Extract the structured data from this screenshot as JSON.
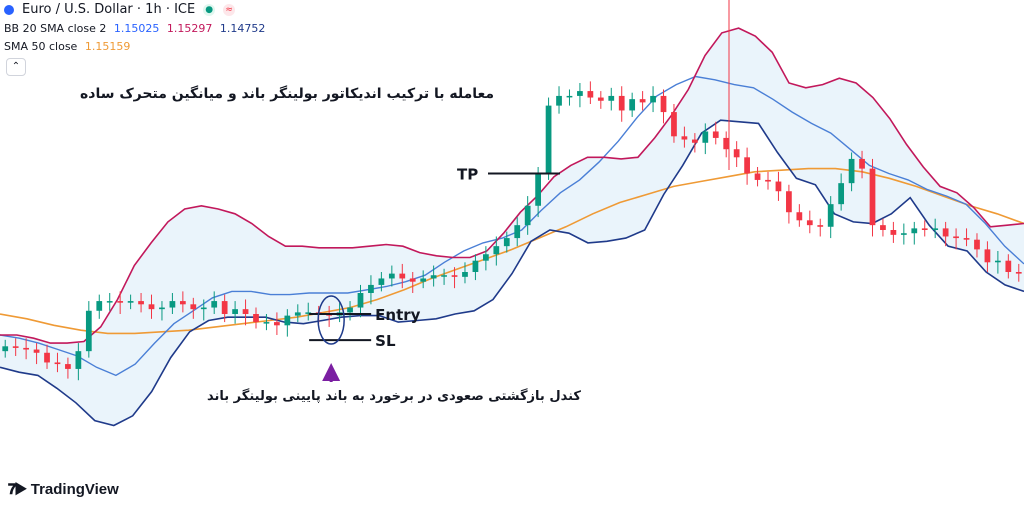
{
  "header": {
    "symbol_title": "Euro / U.S. Dollar · 1h · ICE",
    "status_dot_color": "#2962ff",
    "status_icons": [
      "market-open-icon",
      "data-delay-icon"
    ]
  },
  "legend": {
    "bb_label": "BB 20 SMA close 2",
    "bb_basis": "1.15025",
    "bb_upper": "1.15297",
    "bb_lower": "1.14752",
    "sma_label": "SMA 50 close",
    "sma_value": "1.15159"
  },
  "annotations": {
    "title_fa": "معامله با ترکیب اندیکاتور بولینگر باند و میانگین متحرک ساده",
    "note_fa": "کندل بازگشتی صعودی در برخورد به باند پایینی بولینگر باند",
    "tp_label": "TP",
    "entry_label": "Entry",
    "sl_label": "SL"
  },
  "branding": {
    "logo_text": "TradingView"
  },
  "colors": {
    "bull": "#089981",
    "bear": "#f23645",
    "upper_band": "#c2185b",
    "basis": "#4a7fd6",
    "lower_band": "#1f3a8a",
    "band_fill": "#eaf4fb",
    "sma50": "#ef9a35",
    "arrow": "#7b1fa2"
  },
  "chart_data": {
    "type": "candlestick",
    "symbol": "Euro / U.S. Dollar",
    "timeframe": "1h",
    "ylim": [
      1.138,
      1.164
    ],
    "series": [
      {
        "name": "BB 20 SMA close 2 upper",
        "values": [
          1.1445,
          1.1445,
          1.1443,
          1.144,
          1.144,
          1.1441,
          1.145,
          1.1467,
          1.1488,
          1.1502,
          1.1515,
          1.1523,
          1.1525,
          1.1523,
          1.152,
          1.1514,
          1.1506,
          1.15,
          1.15,
          1.1499,
          1.1499,
          1.1499,
          1.15,
          1.1501,
          1.15,
          1.1496,
          1.1494,
          1.1493,
          1.1493,
          1.1497,
          1.1508,
          1.1521,
          1.1531,
          1.1543,
          1.155,
          1.1555,
          1.1555,
          1.1554,
          1.1555,
          1.1567,
          1.1581,
          1.1597,
          1.1618,
          1.1632,
          1.1635,
          1.163,
          1.162,
          1.1601,
          1.1598,
          1.16,
          1.1604,
          1.1601,
          1.1592,
          1.1579,
          1.1563,
          1.1549,
          1.1537,
          1.1533,
          1.1524,
          1.1512,
          1.1513,
          1.1514
        ]
      },
      {
        "name": "BB 20 SMA close 2 basis",
        "values": [
          1.1445,
          1.1443,
          1.144,
          1.1436,
          1.1432,
          1.1425,
          1.142,
          1.1427,
          1.144,
          1.1452,
          1.146,
          1.1468,
          1.1472,
          1.1472,
          1.147,
          1.147,
          1.1471,
          1.1471,
          1.1471,
          1.1473,
          1.1475,
          1.1478,
          1.1482,
          1.149,
          1.1497,
          1.1502,
          1.1505,
          1.151,
          1.1522,
          1.1533,
          1.1541,
          1.1552,
          1.1565,
          1.158,
          1.1593,
          1.16,
          1.1605,
          1.1603,
          1.16,
          1.1598,
          1.1591,
          1.1583,
          1.1576,
          1.157,
          1.156,
          1.155,
          1.1545,
          1.1541,
          1.1535,
          1.1531,
          1.1526,
          1.1514,
          1.15,
          1.1489
        ]
      },
      {
        "name": "BB 20 SMA close 2 lower",
        "values": [
          1.1425,
          1.1422,
          1.142,
          1.1412,
          1.1403,
          1.1392,
          1.1389,
          1.1395,
          1.141,
          1.1431,
          1.1447,
          1.1454,
          1.1456,
          1.1456,
          1.1456,
          1.1453,
          1.1452,
          1.1454,
          1.1456,
          1.1457,
          1.1457,
          1.1453,
          1.1454,
          1.1455,
          1.1458,
          1.146,
          1.1467,
          1.1483,
          1.1503,
          1.151,
          1.1508,
          1.1502,
          1.1503,
          1.1505,
          1.151,
          1.1532,
          1.155,
          1.157,
          1.1578,
          1.1577,
          1.1576,
          1.1558,
          1.1542,
          1.1538,
          1.152,
          1.1515,
          1.1514,
          1.152,
          1.153,
          1.1513,
          1.15,
          1.1497,
          1.1484,
          1.1476,
          1.1472
        ]
      },
      {
        "name": "SMA 50 close",
        "values": [
          1.1458,
          1.1455,
          1.1451,
          1.1448,
          1.1446,
          1.1446,
          1.1447,
          1.1448,
          1.145,
          1.1452,
          1.1454,
          1.1456,
          1.1459,
          1.1462,
          1.1467,
          1.1473,
          1.148,
          1.1486,
          1.1492,
          1.1498,
          1.1505,
          1.1512,
          1.152,
          1.1527,
          1.1532,
          1.1537,
          1.154,
          1.1543,
          1.1546,
          1.1547,
          1.1548,
          1.1548,
          1.1546,
          1.1542,
          1.1537,
          1.1531,
          1.1525,
          1.152,
          1.1514
        ]
      },
      {
        "name": "closes",
        "values": [
          1.1438,
          1.1437,
          1.1436,
          1.1434,
          1.1428,
          1.1427,
          1.1424,
          1.1435,
          1.146,
          1.1466,
          1.1466,
          1.1465,
          1.1466,
          1.1464,
          1.1461,
          1.1462,
          1.1466,
          1.1464,
          1.1461,
          1.1462,
          1.1466,
          1.1458,
          1.1461,
          1.1458,
          1.1453,
          1.1453,
          1.1451,
          1.1457,
          1.1459,
          1.1459,
          1.1458,
          1.1457,
          1.1459,
          1.1462,
          1.1471,
          1.1476,
          1.148,
          1.1483,
          1.148,
          1.1478,
          1.148,
          1.1482,
          1.1482,
          1.1481,
          1.1484,
          1.1491,
          1.1495,
          1.15,
          1.1505,
          1.1513,
          1.1525,
          1.1545,
          1.1587,
          1.1593,
          1.1593,
          1.1596,
          1.1592,
          1.159,
          1.1593,
          1.1584,
          1.1591,
          1.1589,
          1.1593,
          1.1583,
          1.1568,
          1.1566,
          1.1564,
          1.1571,
          1.1567,
          1.156,
          1.1555,
          1.1545,
          1.1541,
          1.154,
          1.1534,
          1.1521,
          1.1516,
          1.1513,
          1.1512,
          1.1526,
          1.1539,
          1.1554,
          1.1548,
          1.1513,
          1.151,
          1.1507,
          1.1508,
          1.1511,
          1.151,
          1.1511,
          1.1506,
          1.1505,
          1.1504,
          1.1498,
          1.149,
          1.1491,
          1.1484,
          1.1483
        ]
      }
    ],
    "trade_levels": {
      "tp": 1.1545,
      "entry": 1.1458,
      "sl": 1.1453
    },
    "signal_candle_index": 31
  }
}
